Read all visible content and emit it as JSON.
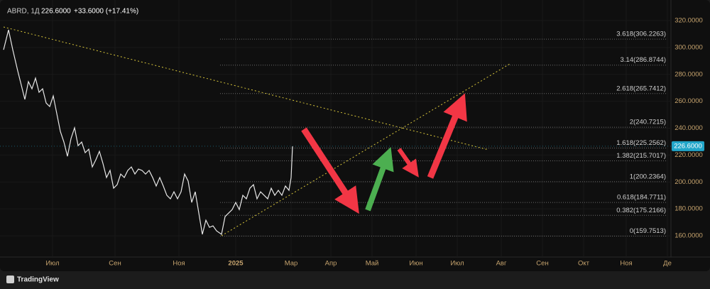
{
  "chart_data": {
    "type": "line",
    "header": {
      "symbol": "ABRD, 1Д",
      "change": "+33.6000 (+17.41%)"
    },
    "last_price": {
      "value": 226.6,
      "label": "226.6000"
    },
    "footer": "TradingView",
    "series": [
      {
        "name": "ABRD",
        "color": "#e8e8e8",
        "x": [
          2.5,
          6,
          9,
          12.5,
          15,
          17.5,
          20,
          22.5,
          25,
          27.5,
          30,
          32.5,
          35,
          37.5,
          40,
          42.5,
          45,
          47.5,
          50,
          52.5,
          55,
          57.5,
          60,
          62.5,
          65,
          67.5,
          70,
          72.5,
          75,
          77.5,
          80,
          82.5,
          85,
          87.5,
          90,
          92.5,
          95,
          97.5,
          100,
          102.5,
          105,
          107.5,
          110,
          112.5,
          115,
          117.5,
          120,
          122.5,
          125,
          127.5,
          130,
          132.5,
          135,
          137.5,
          140,
          142.5,
          145,
          147.5,
          150,
          152.5,
          156,
          158.5,
          161,
          163.5,
          166,
          168.5,
          171,
          173.5,
          176,
          178.5,
          181,
          183.5,
          186,
          188.5,
          191,
          193.5,
          196,
          198.5,
          201,
          203.5,
          205,
          206
        ],
        "values": [
          298.3,
          313.1,
          298.3,
          282.5,
          272,
          261.4,
          274.6,
          269.3,
          277.2,
          266.7,
          269.3,
          258.7,
          256.1,
          264,
          250.8,
          237.6,
          229.7,
          219.1,
          232.3,
          240.3,
          227,
          229.7,
          221.8,
          224.4,
          211.2,
          216.5,
          222.8,
          213.8,
          203.3,
          208.6,
          195.4,
          198,
          205.9,
          203.3,
          208.6,
          211.2,
          205.9,
          209.6,
          208.6,
          205.9,
          208.6,
          203.3,
          197,
          203.3,
          197,
          190.1,
          187.5,
          192.7,
          187.5,
          192.7,
          205.9,
          200.7,
          184.8,
          192.7,
          176.9,
          161.1,
          171.6,
          166.3,
          167.4,
          163.7,
          161.1,
          174.3,
          176.9,
          179.5,
          184.8,
          179.5,
          190.1,
          187.5,
          195.4,
          198,
          187.5,
          192.7,
          190.1,
          187.5,
          195.4,
          190.1,
          193.8,
          190.1,
          197,
          193.8,
          203.3,
          226.5
        ]
      }
    ],
    "xlim": [
      0,
      470
    ],
    "xticks": [
      {
        "value": 37,
        "label": "Июл"
      },
      {
        "value": 81,
        "label": "Сен"
      },
      {
        "value": 126,
        "label": "Ноя"
      },
      {
        "value": 166,
        "label": "2025"
      },
      {
        "value": 205,
        "label": "Мар"
      },
      {
        "value": 233,
        "label": "Апр"
      },
      {
        "value": 262,
        "label": "Май"
      },
      {
        "value": 293,
        "label": "Июн"
      },
      {
        "value": 322,
        "label": "Июл"
      },
      {
        "value": 353,
        "label": "Авг"
      },
      {
        "value": 382,
        "label": "Сен"
      },
      {
        "value": 411,
        "label": "Окт"
      },
      {
        "value": 441,
        "label": "Ноя"
      },
      {
        "value": 470,
        "label": "Де"
      }
    ],
    "ylim": [
      144.2,
      335.3
    ],
    "yticks": [
      {
        "value": 160,
        "label": "160.0000"
      },
      {
        "value": 180,
        "label": "180.0000"
      },
      {
        "value": 200,
        "label": "200.0000"
      },
      {
        "value": 220,
        "label": "220.0000"
      },
      {
        "value": 240,
        "label": "240.0000"
      },
      {
        "value": 260,
        "label": "260.0000"
      },
      {
        "value": 280,
        "label": "280.0000"
      },
      {
        "value": 300,
        "label": "300.0000"
      },
      {
        "value": 320,
        "label": "320.0000"
      }
    ],
    "fib_levels": [
      {
        "value": 306.2263,
        "label": "3.618(306.2263)"
      },
      {
        "value": 286.8744,
        "label": "3.14(286.8744)"
      },
      {
        "value": 265.7412,
        "label": "2.618(265.7412)"
      },
      {
        "value": 240.7215,
        "label": "2(240.7215)"
      },
      {
        "value": 225.2562,
        "label": "1.618(225.2562)"
      },
      {
        "value": 215.7017,
        "label": "1.382(215.7017)"
      },
      {
        "value": 200.2364,
        "label": "1(200.2364)"
      },
      {
        "value": 184.7711,
        "label": "0.618(184.7711)"
      },
      {
        "value": 175.2166,
        "label": "0.382(175.2166)"
      },
      {
        "value": 159.7513,
        "label": "0(159.7513)"
      }
    ]
  }
}
